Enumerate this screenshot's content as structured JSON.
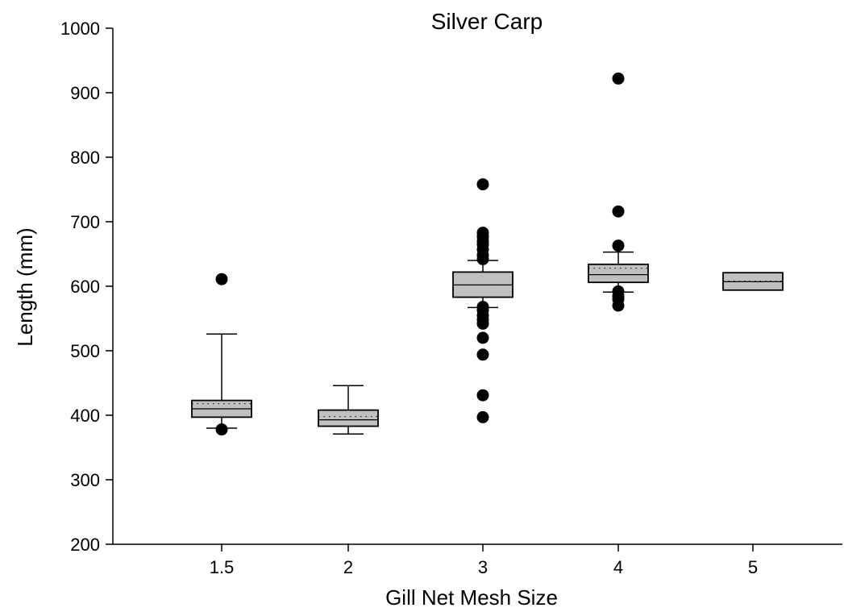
{
  "chart_data": {
    "type": "box",
    "title": "Silver Carp",
    "xlabel": "Gill Net Mesh Size",
    "ylabel": "Length (mm)",
    "ylim": [
      200,
      1000
    ],
    "yticks": [
      200,
      300,
      400,
      500,
      600,
      700,
      800,
      900,
      1000
    ],
    "categories": [
      "1.5",
      "2",
      "3",
      "4",
      "5"
    ],
    "grid": false,
    "legend": "none",
    "colors": {
      "box_fill": "#c0c0c0",
      "outline": "#000000",
      "outlier": "#000000"
    },
    "boxes": [
      {
        "category": "1.5",
        "whisker_low": 380,
        "q1": 397,
        "median": 410,
        "mean": 418,
        "q3": 423,
        "whisker_high": 526,
        "outliers": [
          611,
          378
        ]
      },
      {
        "category": "2",
        "whisker_low": 371,
        "q1": 383,
        "median": 393,
        "mean": 398,
        "q3": 408,
        "whisker_high": 446,
        "outliers": []
      },
      {
        "category": "3",
        "whisker_low": 567,
        "q1": 583,
        "median": 602,
        "mean": 602,
        "q3": 622,
        "whisker_high": 640,
        "outliers": [
          758,
          683,
          677,
          670,
          665,
          657,
          648,
          642,
          568,
          563,
          555,
          548,
          542,
          520,
          494,
          431,
          397
        ]
      },
      {
        "category": "4",
        "whisker_low": 591,
        "q1": 606,
        "median": 618,
        "mean": 628,
        "q3": 634,
        "whisker_high": 653,
        "outliers": [
          922,
          716,
          663,
          592,
          585,
          580,
          570
        ]
      },
      {
        "category": "5",
        "whisker_low": 594,
        "q1": 594,
        "median": 607,
        "mean": 608,
        "q3": 621,
        "whisker_high": 621,
        "outliers": []
      }
    ]
  }
}
